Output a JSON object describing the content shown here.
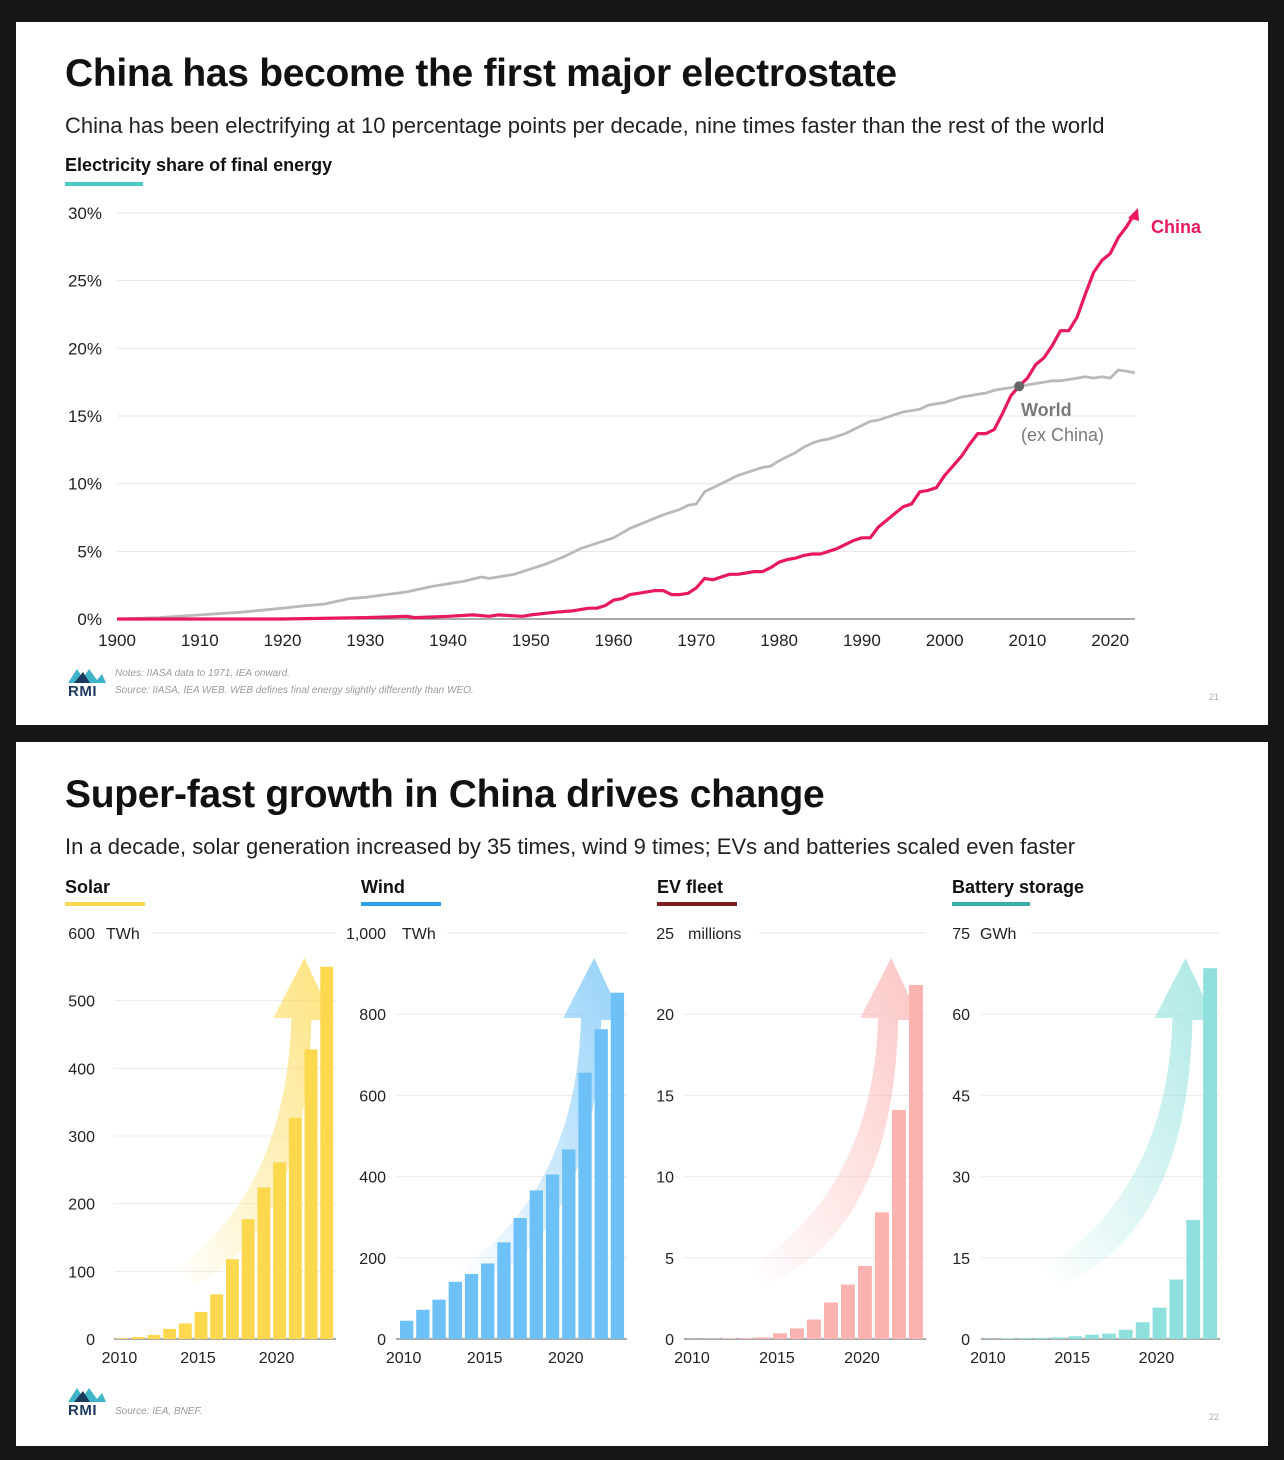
{
  "slide1": {
    "title": "China has become the first major electrostate",
    "subtitle": "China has been electrifying at 10 percentage points per decade, nine times faster than the rest of the world",
    "caption": "Electricity share of final energy",
    "caption_color": "#4cc9c7",
    "notes": "Notes: IIASA data to 1971, IEA onward.",
    "source": "Source: IIASA, IEA WEB. WEB defines final energy slightly differently than WEO.",
    "page": "21",
    "logo_text": "RMI"
  },
  "slide2": {
    "title": "Super-fast growth in China drives change",
    "subtitle": "In a decade, solar generation increased by 35 times, wind 9 times; EVs and batteries scaled even faster",
    "source": "Source: IEA, BNEF.",
    "page": "22",
    "logo_text": "RMI"
  },
  "chart_data": [
    {
      "type": "line",
      "title": "Electricity share of final energy",
      "ylabel": "",
      "xlim": [
        1900,
        2023
      ],
      "ylim": [
        0,
        30
      ],
      "x_ticks": [
        1900,
        1910,
        1920,
        1930,
        1940,
        1950,
        1960,
        1970,
        1980,
        1990,
        2000,
        2010,
        2020
      ],
      "y_ticks": [
        0,
        5,
        10,
        15,
        20,
        25,
        30
      ],
      "y_tick_labels": [
        "0%",
        "5%",
        "10%",
        "15%",
        "20%",
        "25%",
        "30%"
      ],
      "grid": true,
      "annotations": {
        "china_label": "China",
        "world_label": "World",
        "world_sublabel": "(ex China)",
        "crossover_year": 2009,
        "crossover_value": 17.2
      },
      "series": [
        {
          "name": "China",
          "color": "#e8195e",
          "points": [
            [
              1900,
              0
            ],
            [
              1910,
              0
            ],
            [
              1920,
              0
            ],
            [
              1930,
              0.1
            ],
            [
              1935,
              0.2
            ],
            [
              1936,
              0.1
            ],
            [
              1940,
              0.2
            ],
            [
              1943,
              0.3
            ],
            [
              1945,
              0.2
            ],
            [
              1946,
              0.3
            ],
            [
              1949,
              0.2
            ],
            [
              1950,
              0.3
            ],
            [
              1953,
              0.5
            ],
            [
              1955,
              0.6
            ],
            [
              1957,
              0.8
            ],
            [
              1958,
              0.8
            ],
            [
              1959,
              1.0
            ],
            [
              1960,
              1.4
            ],
            [
              1961,
              1.5
            ],
            [
              1962,
              1.8
            ],
            [
              1963,
              1.9
            ],
            [
              1964,
              2.0
            ],
            [
              1965,
              2.1
            ],
            [
              1966,
              2.1
            ],
            [
              1967,
              1.8
            ],
            [
              1968,
              1.8
            ],
            [
              1969,
              1.9
            ],
            [
              1970,
              2.3
            ],
            [
              1971,
              3.0
            ],
            [
              1972,
              2.9
            ],
            [
              1973,
              3.1
            ],
            [
              1974,
              3.3
            ],
            [
              1975,
              3.3
            ],
            [
              1976,
              3.4
            ],
            [
              1977,
              3.5
            ],
            [
              1978,
              3.5
            ],
            [
              1979,
              3.8
            ],
            [
              1980,
              4.2
            ],
            [
              1981,
              4.4
            ],
            [
              1982,
              4.5
            ],
            [
              1983,
              4.7
            ],
            [
              1984,
              4.8
            ],
            [
              1985,
              4.8
            ],
            [
              1986,
              5.0
            ],
            [
              1987,
              5.2
            ],
            [
              1988,
              5.5
            ],
            [
              1989,
              5.8
            ],
            [
              1990,
              6.0
            ],
            [
              1991,
              6.0
            ],
            [
              1992,
              6.8
            ],
            [
              1993,
              7.3
            ],
            [
              1994,
              7.8
            ],
            [
              1995,
              8.3
            ],
            [
              1996,
              8.5
            ],
            [
              1997,
              9.4
            ],
            [
              1998,
              9.5
            ],
            [
              1999,
              9.7
            ],
            [
              2000,
              10.6
            ],
            [
              2001,
              11.3
            ],
            [
              2002,
              12.0
            ],
            [
              2003,
              12.9
            ],
            [
              2004,
              13.7
            ],
            [
              2005,
              13.7
            ],
            [
              2006,
              14.0
            ],
            [
              2007,
              15.2
            ],
            [
              2008,
              16.5
            ],
            [
              2009,
              17.2
            ],
            [
              2010,
              17.8
            ],
            [
              2011,
              18.8
            ],
            [
              2012,
              19.3
            ],
            [
              2013,
              20.2
            ],
            [
              2014,
              21.3
            ],
            [
              2015,
              21.3
            ],
            [
              2016,
              22.3
            ],
            [
              2017,
              24.0
            ],
            [
              2018,
              25.6
            ],
            [
              2019,
              26.5
            ],
            [
              2020,
              27.0
            ],
            [
              2021,
              28.2
            ],
            [
              2022,
              29.0
            ],
            [
              2023,
              30.0
            ]
          ]
        },
        {
          "name": "World",
          "color": "#b9b9b9",
          "points": [
            [
              1900,
              0
            ],
            [
              1905,
              0.1
            ],
            [
              1910,
              0.3
            ],
            [
              1915,
              0.5
            ],
            [
              1920,
              0.8
            ],
            [
              1923,
              1.0
            ],
            [
              1925,
              1.1
            ],
            [
              1928,
              1.5
            ],
            [
              1930,
              1.6
            ],
            [
              1935,
              2.0
            ],
            [
              1938,
              2.4
            ],
            [
              1940,
              2.6
            ],
            [
              1942,
              2.8
            ],
            [
              1944,
              3.1
            ],
            [
              1945,
              3.0
            ],
            [
              1946,
              3.1
            ],
            [
              1948,
              3.3
            ],
            [
              1950,
              3.7
            ],
            [
              1952,
              4.1
            ],
            [
              1954,
              4.6
            ],
            [
              1956,
              5.2
            ],
            [
              1958,
              5.6
            ],
            [
              1960,
              6.0
            ],
            [
              1962,
              6.7
            ],
            [
              1964,
              7.2
            ],
            [
              1966,
              7.7
            ],
            [
              1968,
              8.1
            ],
            [
              1969,
              8.4
            ],
            [
              1970,
              8.5
            ],
            [
              1971,
              9.4
            ],
            [
              1972,
              9.7
            ],
            [
              1973,
              10.0
            ],
            [
              1974,
              10.3
            ],
            [
              1975,
              10.6
            ],
            [
              1976,
              10.8
            ],
            [
              1977,
              11.0
            ],
            [
              1978,
              11.2
            ],
            [
              1979,
              11.3
            ],
            [
              1980,
              11.7
            ],
            [
              1981,
              12.0
            ],
            [
              1982,
              12.3
            ],
            [
              1983,
              12.7
            ],
            [
              1984,
              13.0
            ],
            [
              1985,
              13.2
            ],
            [
              1986,
              13.3
            ],
            [
              1987,
              13.5
            ],
            [
              1988,
              13.7
            ],
            [
              1989,
              14.0
            ],
            [
              1990,
              14.3
            ],
            [
              1991,
              14.6
            ],
            [
              1992,
              14.7
            ],
            [
              1993,
              14.9
            ],
            [
              1994,
              15.1
            ],
            [
              1995,
              15.3
            ],
            [
              1996,
              15.4
            ],
            [
              1997,
              15.5
            ],
            [
              1998,
              15.8
            ],
            [
              1999,
              15.9
            ],
            [
              2000,
              16.0
            ],
            [
              2001,
              16.2
            ],
            [
              2002,
              16.4
            ],
            [
              2003,
              16.5
            ],
            [
              2004,
              16.6
            ],
            [
              2005,
              16.7
            ],
            [
              2006,
              16.9
            ],
            [
              2007,
              17.0
            ],
            [
              2008,
              17.1
            ],
            [
              2009,
              17.2
            ],
            [
              2010,
              17.3
            ],
            [
              2011,
              17.4
            ],
            [
              2012,
              17.5
            ],
            [
              2013,
              17.6
            ],
            [
              2014,
              17.6
            ],
            [
              2015,
              17.7
            ],
            [
              2016,
              17.8
            ],
            [
              2017,
              17.9
            ],
            [
              2018,
              17.8
            ],
            [
              2019,
              17.9
            ],
            [
              2020,
              17.8
            ],
            [
              2021,
              18.4
            ],
            [
              2022,
              18.3
            ],
            [
              2023,
              18.2
            ]
          ]
        }
      ]
    },
    {
      "type": "bar",
      "title": "Solar",
      "unit": "TWh",
      "color": "#fcd84f",
      "categories": [
        2010,
        2011,
        2012,
        2013,
        2014,
        2015,
        2016,
        2017,
        2018,
        2019,
        2020,
        2021,
        2022,
        2023
      ],
      "values": [
        1,
        3,
        6,
        15,
        23,
        40,
        66,
        118,
        177,
        224,
        261,
        327,
        428,
        550
      ],
      "ylim": [
        0,
        600
      ],
      "y_ticks": [
        0,
        100,
        200,
        300,
        400,
        500,
        600
      ],
      "y_tick_labels": [
        "0",
        "100",
        "200",
        "300",
        "400",
        "500",
        "600"
      ],
      "x_ticks": [
        2010,
        2015,
        2020
      ]
    },
    {
      "type": "bar",
      "title": "Wind",
      "unit": "TWh",
      "color": "#6ec1f7",
      "categories": [
        2010,
        2011,
        2012,
        2013,
        2014,
        2015,
        2016,
        2017,
        2018,
        2019,
        2020,
        2021,
        2022,
        2023
      ],
      "values": [
        45,
        72,
        97,
        141,
        160,
        186,
        238,
        298,
        366,
        405,
        467,
        656,
        763,
        853
      ],
      "ylim": [
        0,
        1000
      ],
      "y_ticks": [
        0,
        200,
        400,
        600,
        800,
        1000
      ],
      "y_tick_labels": [
        "0",
        "200",
        "400",
        "600",
        "800",
        "1,000"
      ],
      "x_ticks": [
        2010,
        2015,
        2020
      ]
    },
    {
      "type": "bar",
      "title": "EV fleet",
      "unit": "millions",
      "color": "#fbb3b0",
      "caption_color": "#7b1f1f",
      "categories": [
        2010,
        2011,
        2012,
        2013,
        2014,
        2015,
        2016,
        2017,
        2018,
        2019,
        2020,
        2021,
        2022,
        2023
      ],
      "values": [
        0.01,
        0.02,
        0.03,
        0.05,
        0.1,
        0.35,
        0.65,
        1.2,
        2.25,
        3.35,
        4.5,
        7.8,
        14.1,
        21.8
      ],
      "ylim": [
        0,
        25
      ],
      "y_ticks": [
        0,
        5,
        10,
        15,
        20,
        25
      ],
      "y_tick_labels": [
        "0",
        "5",
        "10",
        "15",
        "20",
        "25"
      ],
      "x_ticks": [
        2010,
        2015,
        2020
      ]
    },
    {
      "type": "bar",
      "title": "Battery storage",
      "unit": "GWh",
      "color": "#8fe0dc",
      "caption_color": "#3aaea8",
      "categories": [
        2010,
        2011,
        2012,
        2013,
        2014,
        2015,
        2016,
        2017,
        2018,
        2019,
        2020,
        2021,
        2022,
        2023
      ],
      "values": [
        0.05,
        0.1,
        0.15,
        0.2,
        0.3,
        0.5,
        0.8,
        1.0,
        1.7,
        3.1,
        5.8,
        11.0,
        22.0,
        68.5
      ],
      "ylim": [
        0,
        75
      ],
      "y_ticks": [
        0,
        15,
        30,
        45,
        60,
        75
      ],
      "y_tick_labels": [
        "0",
        "15",
        "30",
        "45",
        "60",
        "75"
      ],
      "x_ticks": [
        2010,
        2015,
        2020
      ]
    }
  ]
}
